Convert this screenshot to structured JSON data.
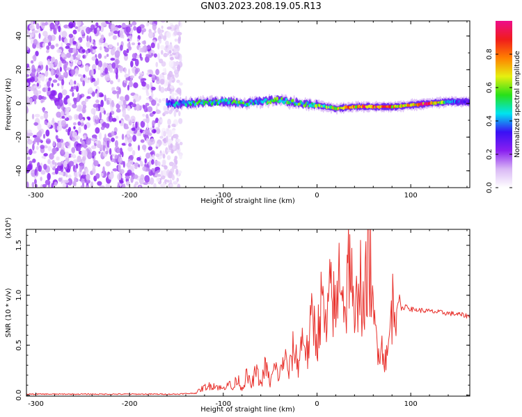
{
  "title": "GN03.2023.208.19.05.R13",
  "colors": {
    "line": "#e8312c",
    "axis": "#000000",
    "background": "#ffffff"
  },
  "chart_data": [
    {
      "type": "heatmap",
      "xlabel": "Height of straight line (km)",
      "ylabel": "Frequency (Hz)",
      "xlim": [
        -310,
        163
      ],
      "ylim": [
        -50,
        49
      ],
      "xticks": [
        -300,
        -200,
        -100,
        0,
        100
      ],
      "xtick_labels": [
        "-300",
        "-200",
        "-100",
        "0",
        "100"
      ],
      "yticks": [
        -40,
        -20,
        0,
        20,
        40
      ],
      "ytick_labels": [
        "-40",
        "-20",
        "0",
        "20",
        "40"
      ],
      "colorbar": {
        "label": "Normalized spectral amplitude",
        "range": [
          0,
          1
        ],
        "ticks": [
          0.0,
          0.2,
          0.4,
          0.6,
          0.8
        ],
        "tick_labels": [
          "0.0",
          "0.2",
          "0.4",
          "0.6",
          "0.8"
        ],
        "colormap": [
          "#ffffff",
          "#d9b8f5",
          "#8a1ff0",
          "#3a10f5",
          "#00e4f0",
          "#28e018",
          "#e6f010",
          "#ff8000",
          "#f01c1c",
          "#ee0d8a"
        ]
      },
      "noise_region": {
        "x": [
          -310,
          -145
        ],
        "y": [
          -50,
          49
        ],
        "level": 0.12
      },
      "signal_track": {
        "x": [
          -160,
          -140,
          -120,
          -100,
          -80,
          -60,
          -40,
          -20,
          0,
          20,
          40,
          60,
          80,
          100,
          120,
          140,
          163
        ],
        "freq": [
          0,
          0,
          0.5,
          1,
          0,
          1,
          2,
          0,
          -1,
          -3,
          -2,
          -2,
          -2,
          -1,
          0,
          1,
          1
        ],
        "amp": [
          0.35,
          0.45,
          0.5,
          0.45,
          0.5,
          0.45,
          0.55,
          0.5,
          0.55,
          0.65,
          0.75,
          0.8,
          0.75,
          0.65,
          0.9,
          0.4,
          0.25
        ]
      }
    },
    {
      "type": "line",
      "xlabel": "Height of straight line (km)",
      "ylabel": "SNR (10 * v/v)",
      "y_scale_label": "(x10⁴)",
      "xlim": [
        -310,
        163
      ],
      "ylim": [
        -0.01,
        1.66
      ],
      "xticks": [
        -300,
        -200,
        -100,
        0,
        100
      ],
      "xtick_labels": [
        "-300",
        "-200",
        "-100",
        "0",
        "100"
      ],
      "yticks": [
        0.0,
        0.5,
        1.0,
        1.5
      ],
      "ytick_labels": [
        "0.0",
        "0.5",
        "1.0",
        "1.5"
      ],
      "series": [
        {
          "color": "#e8312c",
          "x": [
            -310,
            -250,
            -200,
            -150,
            -130,
            -120,
            -110,
            -100,
            -95,
            -90,
            -85,
            -80,
            -75,
            -70,
            -65,
            -60,
            -55,
            -50,
            -45,
            -40,
            -35,
            -30,
            -25,
            -20,
            -15,
            -10,
            -5,
            0,
            5,
            10,
            15,
            20,
            25,
            30,
            35,
            40,
            45,
            50,
            55,
            60,
            65,
            70,
            75,
            80,
            85,
            88,
            90,
            95,
            100,
            110,
            120,
            130,
            140,
            150,
            163
          ],
          "y": [
            0.01,
            0.01,
            0.01,
            0.01,
            0.02,
            0.08,
            0.1,
            0.06,
            0.14,
            0.05,
            0.18,
            0.06,
            0.2,
            0.09,
            0.25,
            0.1,
            0.3,
            0.12,
            0.28,
            0.18,
            0.4,
            0.22,
            0.48,
            0.3,
            0.62,
            0.4,
            0.8,
            0.55,
            0.95,
            0.6,
            1.1,
            0.75,
            1.4,
            0.8,
            1.5,
            0.55,
            1.35,
            0.7,
            1.65,
            0.7,
            0.55,
            0.45,
            0.35,
            0.9,
            0.88,
            0.98,
            0.85,
            0.9,
            0.86,
            0.85,
            0.84,
            0.83,
            0.82,
            0.81,
            0.79
          ]
        }
      ]
    }
  ]
}
